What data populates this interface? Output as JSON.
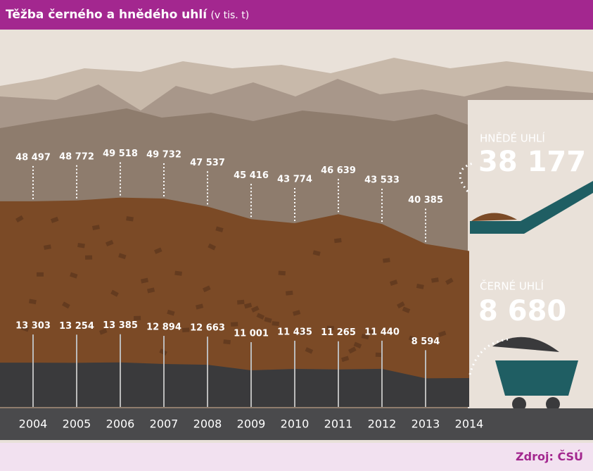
{
  "title": "Těžba černého a hnědého uhlí",
  "subtitle": "(v tis. t)",
  "source": "Zdroj: ČSÚ",
  "chart_data": {
    "type": "area",
    "stacked": true,
    "categories": [
      "2004",
      "2005",
      "2006",
      "2007",
      "2008",
      "2009",
      "2010",
      "2011",
      "2012",
      "2013",
      "2014"
    ],
    "series": [
      {
        "name": "HNĚDÉ UHLÍ",
        "color": "#7b4a26",
        "values": [
          48497,
          48772,
          49518,
          49732,
          47537,
          45416,
          43774,
          46639,
          43533,
          40385,
          38177
        ],
        "value_labels": [
          "48 497",
          "48 772",
          "49 518",
          "49 732",
          "47 537",
          "45 416",
          "43 774",
          "46 639",
          "43 533",
          "40 385",
          "38 177"
        ]
      },
      {
        "name": "ČERNÉ UHLÍ",
        "color": "#3a3a3c",
        "values": [
          13303,
          13254,
          13385,
          12894,
          12663,
          11001,
          11435,
          11265,
          11440,
          8594,
          8680
        ],
        "value_labels": [
          "13 303",
          "13 254",
          "13 385",
          "12 894",
          "12 663",
          "11 001",
          "11 435",
          "11 265",
          "11 440",
          "8 594",
          "8 680"
        ]
      }
    ],
    "ylim": [
      0,
      110000
    ]
  }
}
